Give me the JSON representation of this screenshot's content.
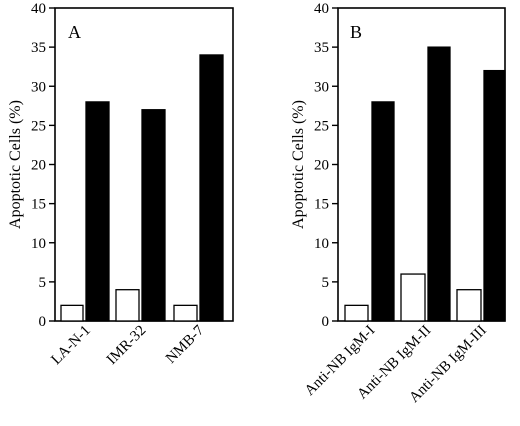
{
  "chart_data": [
    {
      "type": "bar",
      "panel_label": "A",
      "title": "",
      "xlabel": "",
      "ylabel": "Apoptotic Cells (%)",
      "ylim": [
        0,
        40
      ],
      "yticks": [
        0,
        5,
        10,
        15,
        20,
        25,
        30,
        35,
        40
      ],
      "categories": [
        "LA-N-1",
        "IMR-32",
        "NMB-7"
      ],
      "series": [
        {
          "fill": "#ffffff",
          "values": [
            2,
            4,
            2
          ]
        },
        {
          "fill": "#000000",
          "values": [
            28,
            27,
            34
          ]
        }
      ],
      "grid": false,
      "legend": "none"
    },
    {
      "type": "bar",
      "panel_label": "B",
      "title": "",
      "xlabel": "",
      "ylabel": "Apoptotic Cells (%)",
      "ylim": [
        0,
        40
      ],
      "yticks": [
        0,
        5,
        10,
        15,
        20,
        25,
        30,
        35,
        40
      ],
      "categories": [
        "Anti-NB IgM-I",
        "Anti-NB IgM-II",
        "Anti-NB IgM-III"
      ],
      "series": [
        {
          "fill": "#ffffff",
          "values": [
            2,
            6,
            4
          ]
        },
        {
          "fill": "#000000",
          "values": [
            28,
            35,
            32
          ]
        }
      ],
      "grid": false,
      "legend": "none"
    }
  ]
}
